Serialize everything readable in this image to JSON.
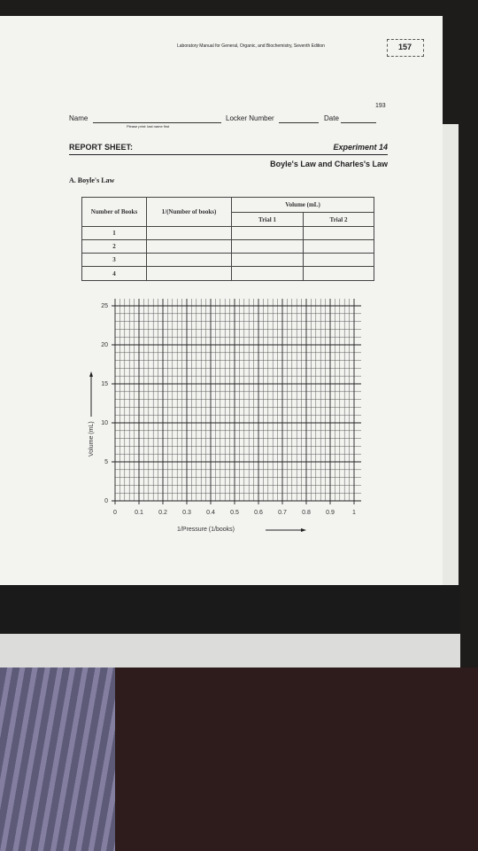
{
  "header": {
    "running_title": "Laboratory Manual for General, Organic, and Biochemistry, Seventh Edition",
    "book_page": "157",
    "page_number": "193"
  },
  "fields": {
    "name": "Name",
    "name_hint": "Please print: last name first",
    "locker": "Locker Number",
    "date": "Date"
  },
  "report": {
    "label": "REPORT SHEET:",
    "experiment": "Experiment 14",
    "title": "Boyle's Law and Charles's Law"
  },
  "section": "A. Boyle's Law",
  "table": {
    "header": [
      "Number of Books",
      "1/(Number of books)",
      "Volume (mL)",
      "Trial 1",
      "Trial 2"
    ],
    "rows": [
      "1",
      "2",
      "3",
      "4"
    ]
  },
  "graph": {
    "xlabel": "1/Pressure (1/books)",
    "ylabel": "Volume (mL)",
    "xlim": [
      0,
      1
    ],
    "ylim": [
      0,
      25
    ],
    "xticks": [
      0,
      0.1,
      0.2,
      0.3,
      0.4,
      0.5,
      0.6,
      0.7,
      0.8,
      0.9,
      1
    ],
    "yticks": [
      0,
      5,
      10,
      15,
      20,
      25
    ]
  }
}
